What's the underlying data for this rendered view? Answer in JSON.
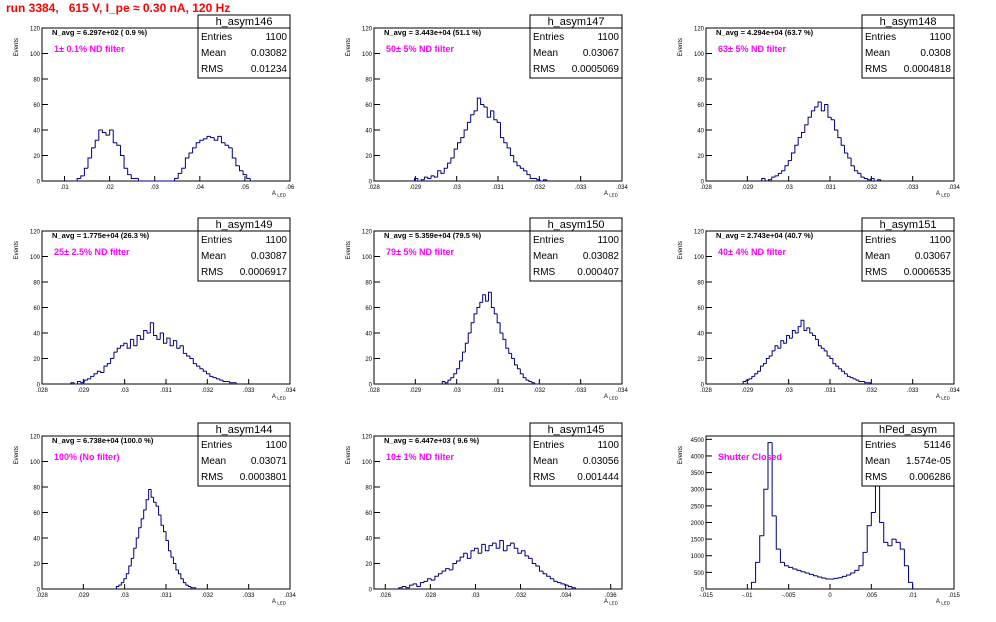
{
  "page": {
    "title": "run 3384,   615 V, I_pe ≈ 0.30 nA, 120 Hz"
  },
  "colors": {
    "title": "#ff0000",
    "histogram": "#00007f",
    "annotation": "#ff00ff",
    "navg": "#000000",
    "axis": "#000000"
  },
  "stat_labels": {
    "entries": "Entries",
    "mean": "Mean",
    "rms": "RMS"
  },
  "chart_data": [
    {
      "type": "bar",
      "name": "h_asym146",
      "stats": {
        "entries": "1100",
        "mean": "0.03082",
        "rms": "0.01234"
      },
      "navg_text": "N_avg = 6.297e+02 ( 0.9 %)",
      "filter_text": "1± 0.1% ND filter",
      "xlabel": "A_LED",
      "ylabel": "Events",
      "xlim": [
        0.005,
        0.06
      ],
      "ylim": [
        0,
        120
      ],
      "xticks": [
        0.01,
        0.02,
        0.03,
        0.04,
        0.05,
        0.06
      ],
      "yticks": [
        0,
        20,
        40,
        60,
        80,
        100,
        120
      ],
      "bin_edges": [
        0.012,
        0.0128,
        0.0136,
        0.0144,
        0.0152,
        0.016,
        0.0168,
        0.0176,
        0.0184,
        0.0192,
        0.02,
        0.0208,
        0.0216,
        0.0224,
        0.0232,
        0.024,
        0.0248,
        0.0256,
        0.0264,
        0.0272,
        0.028,
        0.0288,
        0.0296,
        0.0304,
        0.0312,
        0.032,
        0.0328,
        0.0336,
        0.0344,
        0.0352,
        0.036,
        0.0368,
        0.0376,
        0.0384,
        0.0392,
        0.04,
        0.0408,
        0.0416,
        0.0424,
        0.0432,
        0.044,
        0.0448,
        0.0456,
        0.0464,
        0.0472,
        0.048,
        0.0488,
        0.0496,
        0.0504,
        0.0512,
        0.052
      ],
      "values": [
        0,
        2,
        4,
        10,
        18,
        26,
        32,
        40,
        38,
        36,
        40,
        30,
        28,
        20,
        10,
        5,
        2,
        2,
        0,
        0,
        0,
        0,
        0,
        0,
        0,
        0,
        0,
        0,
        2,
        6,
        10,
        18,
        22,
        26,
        30,
        32,
        33,
        35,
        34,
        32,
        35,
        30,
        28,
        26,
        18,
        12,
        8,
        5,
        2,
        0
      ]
    },
    {
      "type": "bar",
      "name": "h_asym147",
      "stats": {
        "entries": "1100",
        "mean": "0.03067",
        "rms": "0.0005069"
      },
      "navg_text": "N_avg = 3.443e+04 (51.1 %)",
      "filter_text": "50± 5% ND filter",
      "xlabel": "A_LED",
      "ylabel": "Events",
      "xlim": [
        0.028,
        0.034
      ],
      "ylim": [
        0,
        120
      ],
      "xticks": [
        0.028,
        0.029,
        0.03,
        0.031,
        0.032,
        0.033,
        0.034
      ],
      "yticks": [
        0,
        20,
        40,
        60,
        80,
        100,
        120
      ],
      "bin_edges": [
        0.0289,
        0.02898,
        0.02906,
        0.02914,
        0.02922,
        0.0293,
        0.02938,
        0.02946,
        0.02954,
        0.02962,
        0.0297,
        0.02978,
        0.02986,
        0.02994,
        0.03002,
        0.0301,
        0.03018,
        0.03026,
        0.03034,
        0.03042,
        0.0305,
        0.03058,
        0.03066,
        0.03074,
        0.03082,
        0.0309,
        0.03098,
        0.03106,
        0.03114,
        0.03122,
        0.0313,
        0.03138,
        0.03146,
        0.03154,
        0.03162,
        0.0317,
        0.03178,
        0.03186,
        0.03194,
        0.03202,
        0.0321,
        0.03218
      ],
      "values": [
        0,
        2,
        0,
        1,
        3,
        2,
        4,
        3,
        8,
        6,
        10,
        14,
        18,
        25,
        30,
        34,
        40,
        46,
        52,
        55,
        65,
        60,
        58,
        50,
        55,
        48,
        46,
        34,
        30,
        26,
        20,
        15,
        12,
        10,
        8,
        5,
        2,
        2,
        1,
        0,
        1
      ]
    },
    {
      "type": "bar",
      "name": "h_asym148",
      "stats": {
        "entries": "1100",
        "mean": "0.0308",
        "rms": "0.0004818"
      },
      "navg_text": "N_avg = 4.294e+04 (63.7 %)",
      "filter_text": "63± 5% ND filter",
      "xlabel": "A_LED",
      "ylabel": "Events",
      "xlim": [
        0.028,
        0.034
      ],
      "ylim": [
        0,
        120
      ],
      "xticks": [
        0.028,
        0.029,
        0.03,
        0.031,
        0.032,
        0.033,
        0.034
      ],
      "yticks": [
        0,
        20,
        40,
        60,
        80,
        100,
        120
      ],
      "bin_edges": [
        0.02935,
        0.02943,
        0.02951,
        0.02959,
        0.02967,
        0.02975,
        0.02983,
        0.02991,
        0.02999,
        0.03007,
        0.03015,
        0.03023,
        0.03031,
        0.03039,
        0.03047,
        0.03055,
        0.03063,
        0.03071,
        0.03079,
        0.03087,
        0.03095,
        0.03103,
        0.03111,
        0.03119,
        0.03127,
        0.03135,
        0.03143,
        0.03151,
        0.03159,
        0.03167,
        0.03175,
        0.03183,
        0.03191,
        0.03199,
        0.03207,
        0.03215,
        0.03223
      ],
      "values": [
        2,
        0,
        1,
        3,
        4,
        6,
        8,
        12,
        16,
        22,
        28,
        34,
        38,
        44,
        50,
        55,
        58,
        62,
        55,
        60,
        50,
        48,
        40,
        34,
        28,
        22,
        18,
        12,
        8,
        6,
        3,
        2,
        1,
        2,
        0,
        1
      ]
    },
    {
      "type": "bar",
      "name": "h_asym149",
      "stats": {
        "entries": "1100",
        "mean": "0.03087",
        "rms": "0.0006917"
      },
      "navg_text": "N_avg = 1.775e+04 (26.3 %)",
      "filter_text": "25± 2.5% ND filter",
      "xlabel": "A_LED",
      "ylabel": "Events",
      "xlim": [
        0.028,
        0.034
      ],
      "ylim": [
        0,
        120
      ],
      "xticks": [
        0.028,
        0.029,
        0.03,
        0.031,
        0.032,
        0.033,
        0.034
      ],
      "yticks": [
        0,
        20,
        40,
        60,
        80,
        100,
        120
      ],
      "bin_edges": [
        0.0287,
        0.02878,
        0.02886,
        0.02894,
        0.02902,
        0.0291,
        0.02918,
        0.02926,
        0.02934,
        0.02942,
        0.0295,
        0.02958,
        0.02966,
        0.02974,
        0.02982,
        0.0299,
        0.02998,
        0.03006,
        0.03014,
        0.03022,
        0.0303,
        0.03038,
        0.03046,
        0.03054,
        0.03062,
        0.0307,
        0.03078,
        0.03086,
        0.03094,
        0.03102,
        0.0311,
        0.03118,
        0.03126,
        0.03134,
        0.03142,
        0.0315,
        0.03158,
        0.03166,
        0.03174,
        0.03182,
        0.0319,
        0.03198,
        0.03206,
        0.03214,
        0.03222,
        0.0323,
        0.03238,
        0.03246,
        0.03254,
        0.03262,
        0.0327
      ],
      "values": [
        1,
        0,
        2,
        1,
        3,
        4,
        6,
        8,
        10,
        9,
        14,
        16,
        20,
        25,
        28,
        30,
        32,
        28,
        35,
        30,
        38,
        35,
        42,
        40,
        48,
        38,
        35,
        40,
        32,
        36,
        30,
        34,
        28,
        30,
        24,
        22,
        20,
        16,
        14,
        12,
        10,
        8,
        6,
        5,
        4,
        3,
        2,
        2,
        1,
        1
      ]
    },
    {
      "type": "bar",
      "name": "h_asym150",
      "stats": {
        "entries": "1100",
        "mean": "0.03082",
        "rms": "0.000407"
      },
      "navg_text": "N_avg = 5.359e+04 (79.5 %)",
      "filter_text": "79± 5% ND filter",
      "xlabel": "A_LED",
      "ylabel": "Events",
      "xlim": [
        0.028,
        0.034
      ],
      "ylim": [
        0,
        120
      ],
      "xticks": [
        0.028,
        0.029,
        0.03,
        0.031,
        0.032,
        0.033,
        0.034
      ],
      "yticks": [
        0,
        20,
        40,
        60,
        80,
        100,
        120
      ],
      "bin_edges": [
        0.02965,
        0.02972,
        0.02979,
        0.02986,
        0.02993,
        0.03,
        0.03007,
        0.03014,
        0.03021,
        0.03028,
        0.03035,
        0.03042,
        0.03049,
        0.03056,
        0.03063,
        0.0307,
        0.03077,
        0.03084,
        0.03091,
        0.03098,
        0.03105,
        0.03112,
        0.03119,
        0.03126,
        0.03133,
        0.0314,
        0.03147,
        0.03154,
        0.03161,
        0.03168,
        0.03175,
        0.03182,
        0.03189,
        0.03196
      ],
      "values": [
        2,
        1,
        3,
        5,
        8,
        12,
        18,
        25,
        32,
        40,
        48,
        55,
        60,
        64,
        70,
        65,
        72,
        60,
        55,
        48,
        40,
        35,
        28,
        24,
        20,
        15,
        12,
        8,
        5,
        3,
        2,
        1,
        0
      ]
    },
    {
      "type": "bar",
      "name": "h_asym151",
      "stats": {
        "entries": "1100",
        "mean": "0.03067",
        "rms": "0.0006535"
      },
      "navg_text": "N_avg = 2.743e+04 (40.7 %)",
      "filter_text": "40± 4% ND filter",
      "xlabel": "A_LED",
      "ylabel": "Events",
      "xlim": [
        0.028,
        0.034
      ],
      "ylim": [
        0,
        120
      ],
      "xticks": [
        0.028,
        0.029,
        0.03,
        0.031,
        0.032,
        0.033,
        0.034
      ],
      "yticks": [
        0,
        20,
        40,
        60,
        80,
        100,
        120
      ],
      "bin_edges": [
        0.0289,
        0.02897,
        0.02904,
        0.02911,
        0.02918,
        0.02925,
        0.02932,
        0.02939,
        0.02946,
        0.02953,
        0.0296,
        0.02967,
        0.02974,
        0.02981,
        0.02988,
        0.02995,
        0.03002,
        0.03009,
        0.03016,
        0.03023,
        0.0303,
        0.03037,
        0.03044,
        0.03051,
        0.03058,
        0.03065,
        0.03072,
        0.03079,
        0.03086,
        0.03093,
        0.031,
        0.03107,
        0.03114,
        0.03121,
        0.03128,
        0.03135,
        0.03142,
        0.03149,
        0.03156,
        0.03163,
        0.0317,
        0.03177,
        0.03184,
        0.03191,
        0.03198,
        0.03205
      ],
      "values": [
        2,
        3,
        4,
        6,
        8,
        10,
        14,
        16,
        20,
        22,
        26,
        30,
        28,
        34,
        32,
        38,
        36,
        42,
        40,
        45,
        50,
        42,
        44,
        40,
        38,
        35,
        30,
        28,
        26,
        22,
        20,
        16,
        14,
        12,
        10,
        8,
        6,
        5,
        4,
        3,
        2,
        2,
        1,
        1,
        0
      ]
    },
    {
      "type": "bar",
      "name": "h_asym144",
      "stats": {
        "entries": "1100",
        "mean": "0.03071",
        "rms": "0.0003801"
      },
      "navg_text": "N_avg = 6.738e+04 (100.0 %)",
      "filter_text": "100% (No filter)",
      "xlabel": "A_LED",
      "ylabel": "Events",
      "xlim": [
        0.028,
        0.034
      ],
      "ylim": [
        0,
        120
      ],
      "xticks": [
        0.028,
        0.029,
        0.03,
        0.031,
        0.032,
        0.033,
        0.034
      ],
      "yticks": [
        0,
        20,
        40,
        60,
        80,
        100,
        120
      ],
      "bin_edges": [
        0.0298,
        0.02986,
        0.02992,
        0.02998,
        0.03004,
        0.0301,
        0.03016,
        0.03022,
        0.03028,
        0.03034,
        0.0304,
        0.03046,
        0.03052,
        0.03058,
        0.03064,
        0.0307,
        0.03076,
        0.03082,
        0.03088,
        0.03094,
        0.031,
        0.03106,
        0.03112,
        0.03118,
        0.03124,
        0.0313,
        0.03136,
        0.03142,
        0.03148,
        0.03154,
        0.0316,
        0.03166,
        0.03172,
        0.03178
      ],
      "values": [
        2,
        3,
        5,
        8,
        12,
        18,
        24,
        32,
        40,
        48,
        55,
        62,
        70,
        78,
        72,
        68,
        65,
        58,
        50,
        45,
        38,
        30,
        25,
        20,
        15,
        12,
        8,
        5,
        3,
        2,
        1,
        1,
        0
      ]
    },
    {
      "type": "bar",
      "name": "h_asym145",
      "stats": {
        "entries": "1100",
        "mean": "0.03056",
        "rms": "0.001444"
      },
      "navg_text": "N_avg = 6.447e+03 ( 9.6 %)",
      "filter_text": "10± 1% ND filter",
      "xlabel": "A_LED",
      "ylabel": "Events",
      "xlim": [
        0.0255,
        0.0365
      ],
      "ylim": [
        0,
        120
      ],
      "xticks": [
        0.026,
        0.028,
        0.03,
        0.032,
        0.034,
        0.036
      ],
      "yticks": [
        0,
        20,
        40,
        60,
        80,
        100,
        120
      ],
      "bin_edges": [
        0.0266,
        0.02676,
        0.02692,
        0.02708,
        0.02724,
        0.0274,
        0.02756,
        0.02772,
        0.02788,
        0.02804,
        0.0282,
        0.02836,
        0.02852,
        0.02868,
        0.02884,
        0.029,
        0.02916,
        0.02932,
        0.02948,
        0.02964,
        0.0298,
        0.02996,
        0.03012,
        0.03028,
        0.03044,
        0.0306,
        0.03076,
        0.03092,
        0.03108,
        0.03124,
        0.0314,
        0.03156,
        0.03172,
        0.03188,
        0.03204,
        0.0322,
        0.03236,
        0.03252,
        0.03268,
        0.03284,
        0.033,
        0.03316,
        0.03332,
        0.03348,
        0.03364,
        0.0338,
        0.03396,
        0.03412,
        0.03428,
        0.03444,
        0.0346
      ],
      "values": [
        1,
        2,
        1,
        3,
        4,
        2,
        5,
        6,
        8,
        7,
        10,
        12,
        14,
        16,
        15,
        20,
        22,
        25,
        28,
        24,
        30,
        32,
        28,
        35,
        30,
        34,
        36,
        32,
        38,
        30,
        34,
        36,
        32,
        28,
        30,
        26,
        24,
        20,
        18,
        14,
        12,
        10,
        8,
        6,
        5,
        4,
        3,
        2,
        1,
        0
      ]
    },
    {
      "type": "bar",
      "name": "hPed_asym",
      "stats": {
        "entries": "51146",
        "mean": "1.574e-05",
        "rms": "0.006286"
      },
      "filter_text": "Shutter Closed",
      "xlabel": "A_LED",
      "ylabel": "Events",
      "xlim": [
        -0.015,
        0.015
      ],
      "ylim": [
        0,
        4600
      ],
      "xticks": [
        -0.015,
        -0.01,
        -0.005,
        0,
        0.005,
        0.01,
        0.015
      ],
      "yticks": [
        0,
        500,
        1000,
        1500,
        2000,
        2500,
        3000,
        3500,
        4000,
        4500
      ],
      "bin_edges": [
        -0.0095,
        -0.009,
        -0.0085,
        -0.008,
        -0.0075,
        -0.007,
        -0.0065,
        -0.006,
        -0.0055,
        -0.005,
        -0.0045,
        -0.004,
        -0.0035,
        -0.003,
        -0.0025,
        -0.002,
        -0.0015,
        -0.001,
        -0.0005,
        0,
        0.0005,
        0.001,
        0.0015,
        0.002,
        0.0025,
        0.003,
        0.0035,
        0.004,
        0.0045,
        0.005,
        0.0055,
        0.006,
        0.0065,
        0.007,
        0.0075,
        0.008,
        0.0085,
        0.009,
        0.0095,
        0.01
      ],
      "values": [
        200,
        800,
        1600,
        3000,
        4400,
        2200,
        1200,
        800,
        700,
        650,
        600,
        560,
        520,
        480,
        440,
        400,
        360,
        330,
        300,
        300,
        320,
        340,
        380,
        420,
        480,
        560,
        700,
        1100,
        1900,
        2300,
        3300,
        2000,
        1400,
        1300,
        1500,
        1400,
        1200,
        700,
        200
      ]
    }
  ]
}
